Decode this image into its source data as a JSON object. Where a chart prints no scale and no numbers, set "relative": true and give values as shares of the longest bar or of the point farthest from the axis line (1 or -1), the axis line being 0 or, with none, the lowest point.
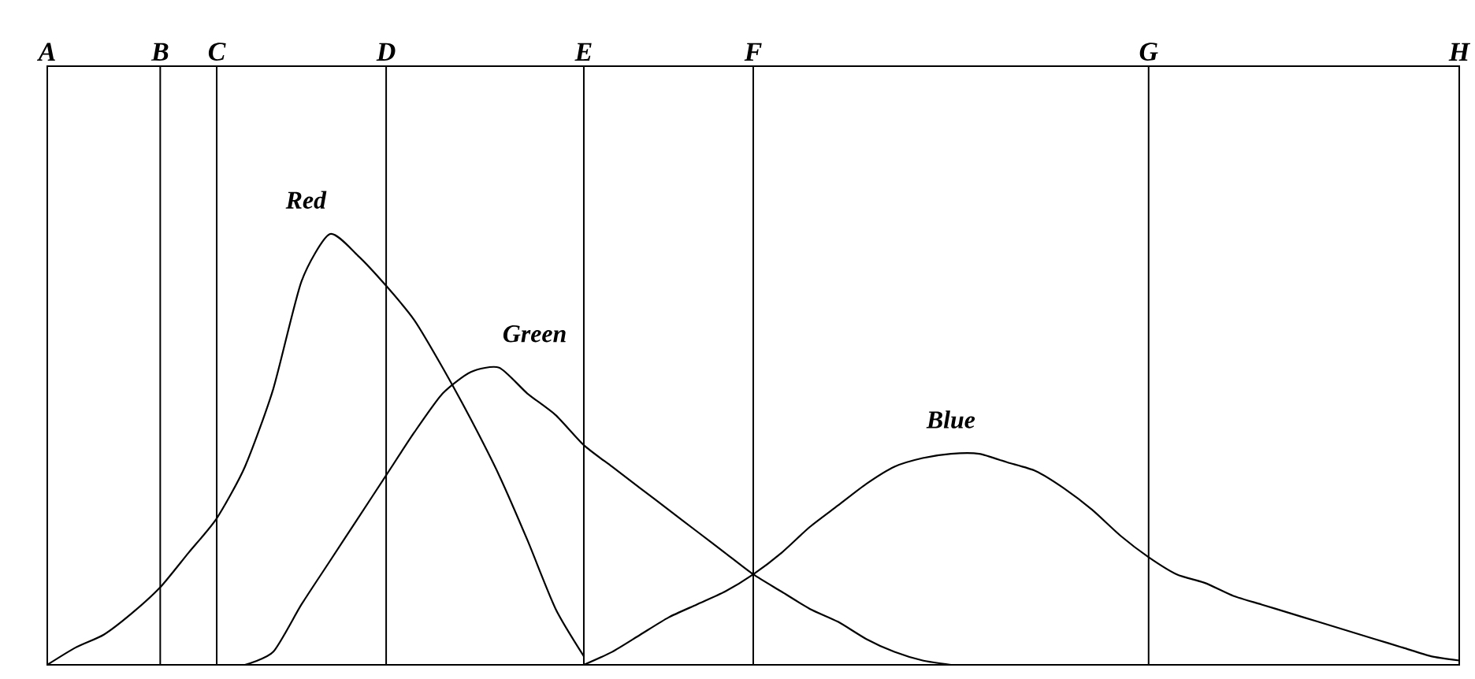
{
  "chart_data": {
    "type": "line",
    "relative": true,
    "categories": [
      "A",
      null,
      null,
      null,
      "B",
      null,
      "C",
      null,
      null,
      null,
      null,
      null,
      "D",
      null,
      null,
      null,
      null,
      null,
      null,
      "E",
      null,
      null,
      null,
      null,
      null,
      "F",
      null,
      null,
      null,
      null,
      null,
      null,
      null,
      null,
      null,
      null,
      null,
      null,
      null,
      "G",
      null,
      null,
      null,
      null,
      null,
      null,
      null,
      null,
      null,
      null,
      "H"
    ],
    "grid": "x",
    "marker": "none",
    "line_style": "solid",
    "series": [
      {
        "name": "Red",
        "color": "#000000",
        "values": [
          0,
          0.04,
          0.07,
          0.12,
          0.18,
          0.26,
          0.34,
          0.46,
          0.64,
          0.89,
          1.0,
          0.95,
          0.88,
          0.8,
          0.69,
          0.57,
          0.44,
          0.29,
          0.13,
          0.02,
          null,
          null,
          null,
          null,
          null,
          null,
          null,
          null,
          null,
          null,
          null,
          null,
          null,
          null,
          null,
          null,
          null,
          null,
          null,
          null,
          null,
          null,
          null,
          null,
          null,
          null,
          null,
          null,
          null,
          null,
          null
        ]
      },
      {
        "name": "Green",
        "color": "#000000",
        "values": [
          null,
          null,
          null,
          null,
          null,
          null,
          null,
          0,
          0.03,
          0.14,
          0.24,
          0.34,
          0.44,
          0.54,
          0.63,
          0.68,
          0.69,
          0.63,
          0.58,
          0.51,
          0.46,
          0.41,
          0.36,
          0.31,
          0.26,
          0.21,
          0.17,
          0.13,
          0.1,
          0.06,
          0.03,
          0.01,
          0,
          null,
          null,
          null,
          null,
          null,
          null,
          null,
          null,
          null,
          null,
          null,
          null,
          null,
          null,
          null,
          null,
          null,
          null
        ]
      },
      {
        "name": "Blue",
        "color": "#000000",
        "values": [
          null,
          null,
          null,
          null,
          null,
          null,
          null,
          null,
          null,
          null,
          null,
          null,
          null,
          null,
          null,
          null,
          null,
          null,
          null,
          0,
          0.03,
          0.07,
          0.11,
          0.14,
          0.17,
          0.21,
          0.26,
          0.32,
          0.37,
          0.42,
          0.46,
          0.48,
          0.49,
          0.49,
          0.47,
          0.45,
          0.41,
          0.36,
          0.3,
          0.25,
          0.21,
          0.19,
          0.16,
          0.14,
          0.12,
          0.1,
          0.08,
          0.06,
          0.04,
          0.02,
          0.01
        ]
      }
    ]
  }
}
